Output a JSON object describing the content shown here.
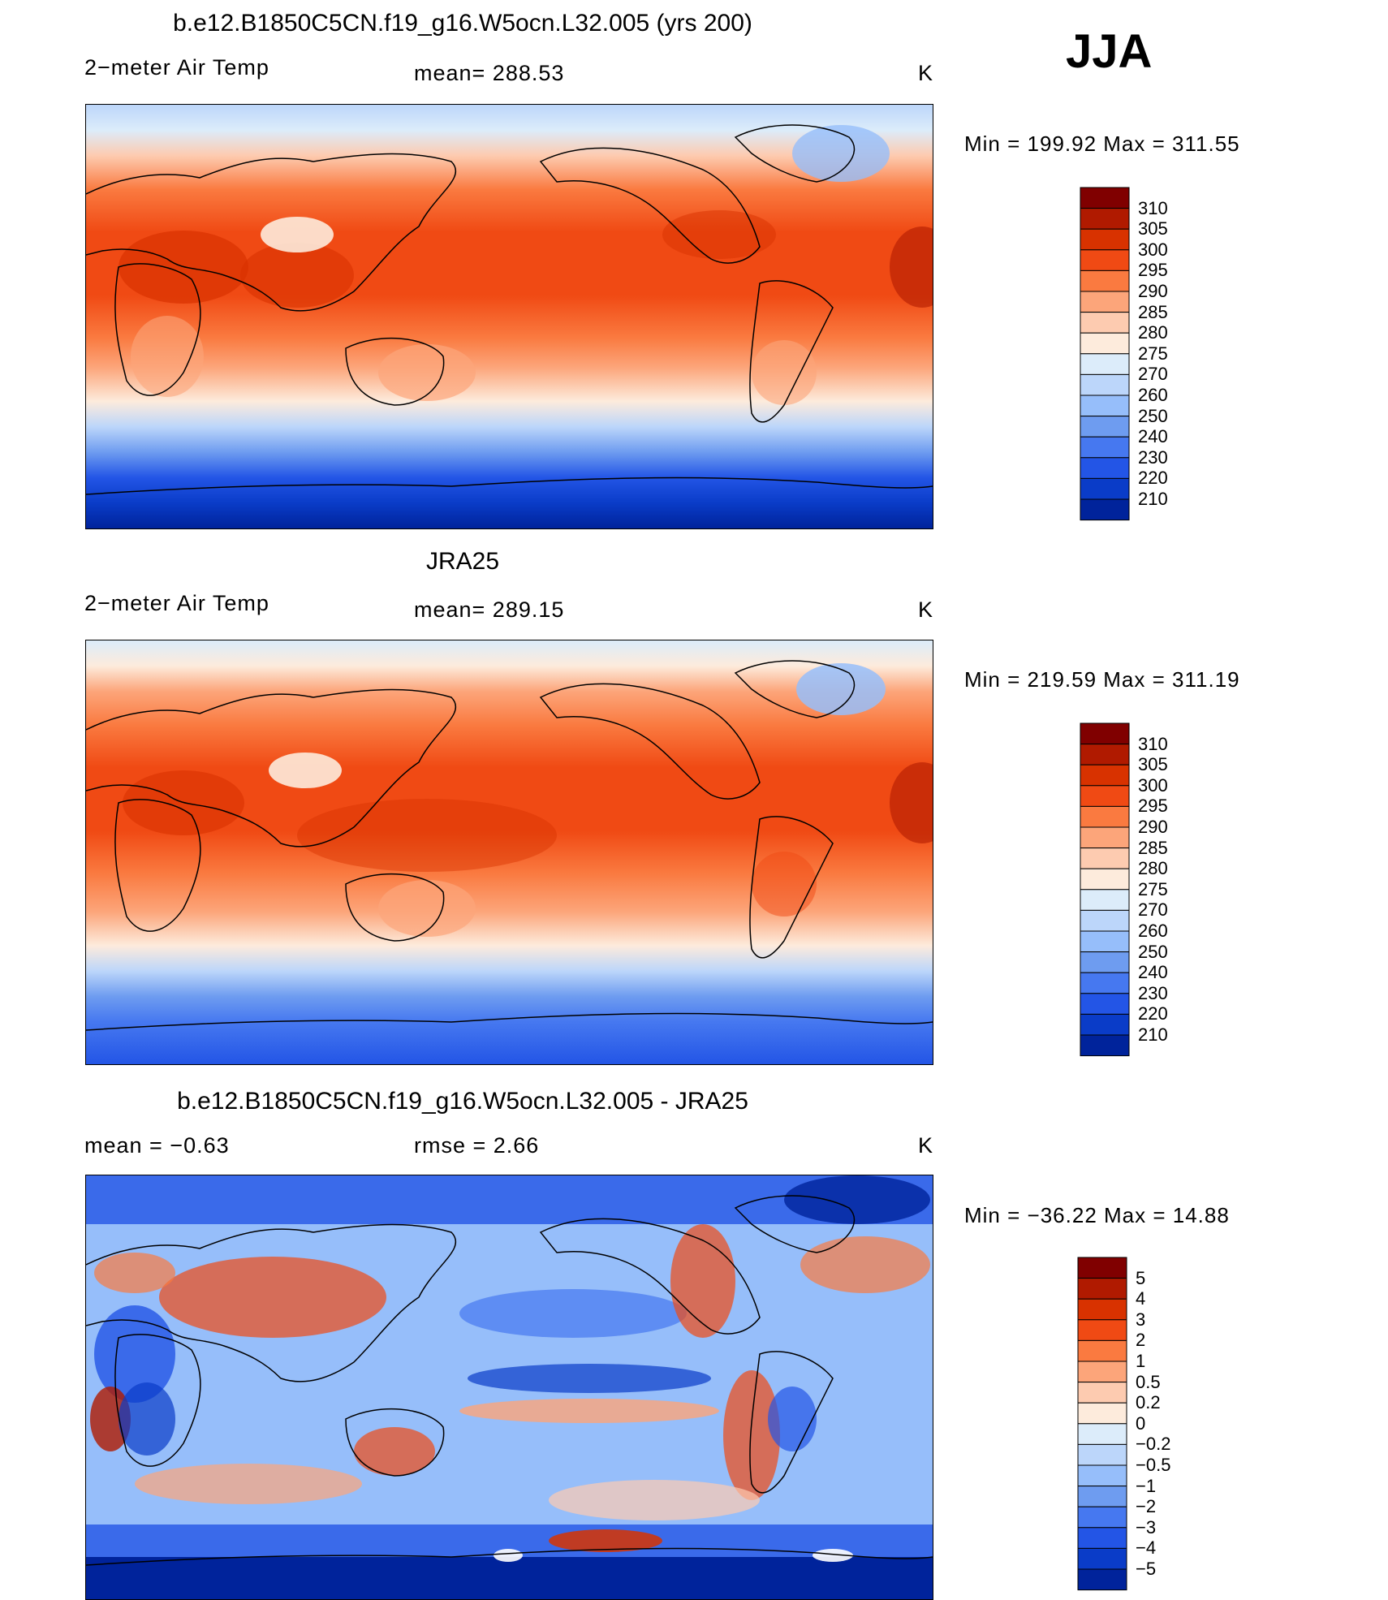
{
  "season": "JJA",
  "panels": [
    {
      "title": "b.e12.B1850C5CN.f19_g16.W5ocn.L32.005 (yrs 200)",
      "left_label": "2−meter Air Temp",
      "center_label": "mean=  288.53",
      "units": "K",
      "minmax": "Min  =  199.92  Max  =  311.55",
      "kind": "abs"
    },
    {
      "title": "JRA25",
      "left_label": "2−meter Air Temp",
      "center_label": "mean=  289.15",
      "units": "K",
      "minmax": "Min  =  219.59  Max  =  311.19",
      "kind": "abs"
    },
    {
      "title": "b.e12.B1850C5CN.f19_g16.W5ocn.L32.005 - JRA25",
      "left_label": "mean  =     −0.63",
      "center_label": "rmse  =      2.66",
      "units": "K",
      "minmax": "Min  =  −36.22  Max  =    14.88",
      "kind": "diff"
    }
  ],
  "colorbar_abs": {
    "labels": [
      "310",
      "305",
      "300",
      "295",
      "290",
      "285",
      "280",
      "275",
      "270",
      "260",
      "250",
      "240",
      "230",
      "220",
      "210"
    ],
    "colors": [
      "#800000",
      "#b01a00",
      "#d83200",
      "#f04a14",
      "#fa7a40",
      "#fca57a",
      "#fdcbb0",
      "#fdebdc",
      "#dcecfa",
      "#bcd6fa",
      "#96befa",
      "#6e9cf0",
      "#4678f0",
      "#2355e6",
      "#0a3cc8",
      "#00239b"
    ]
  },
  "colorbar_diff": {
    "labels": [
      "5",
      "4",
      "3",
      "2",
      "1",
      "0.5",
      "0.2",
      "0",
      "−0.2",
      "−0.5",
      "−1",
      "−2",
      "−3",
      "−4",
      "−5"
    ],
    "colors": [
      "#800000",
      "#b01a00",
      "#d83200",
      "#f04a14",
      "#fa7a40",
      "#fca57a",
      "#fdcbb0",
      "#fdebdc",
      "#dcecfa",
      "#bcd6fa",
      "#96befa",
      "#6e9cf0",
      "#4678f0",
      "#2355e6",
      "#0a3cc8",
      "#00239b"
    ]
  }
}
